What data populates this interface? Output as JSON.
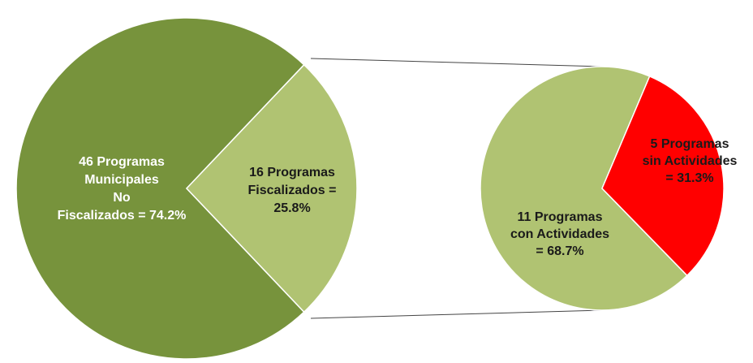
{
  "chart_data": [
    {
      "type": "pie",
      "values": [
        74.2,
        25.8
      ],
      "colors": [
        "#77933c",
        "#b0c372"
      ],
      "value_labels": [
        [
          "46 Programas",
          "Municipales",
          "No",
          "Fiscalizados = 74.2%"
        ],
        [
          "16 Programas",
          "Fiscalizados =",
          "25.8%"
        ]
      ],
      "label_colors": [
        "#ffffff",
        "#1a1a1a"
      ]
    },
    {
      "type": "pie",
      "values": [
        68.7,
        31.3
      ],
      "colors": [
        "#b0c372",
        "#ff0000"
      ],
      "value_labels": [
        [
          "11 Programas",
          "con Actividades",
          "= 68.7%"
        ],
        [
          "5 Programas",
          "sin Actividades",
          "= 31.3%"
        ]
      ],
      "label_colors": [
        "#1a1a1a",
        "#1a1a1a"
      ]
    }
  ]
}
